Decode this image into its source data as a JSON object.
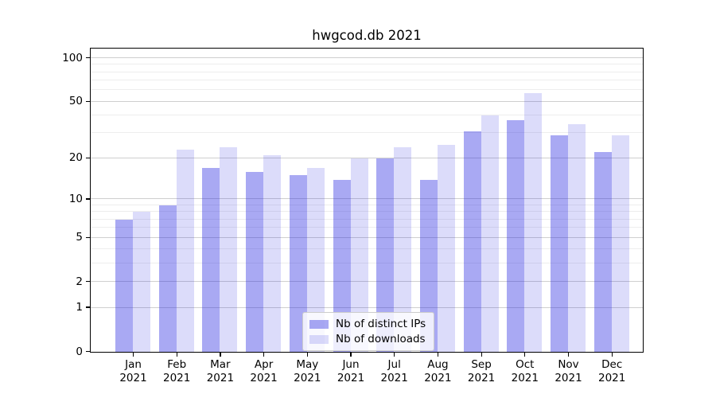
{
  "chart_data": {
    "type": "bar",
    "title": "hwgcod.db 2021",
    "categories": [
      "Jan",
      "Feb",
      "Mar",
      "Apr",
      "May",
      "Jun",
      "Jul",
      "Aug",
      "Sep",
      "Oct",
      "Nov",
      "Dec"
    ],
    "category_year": "2021",
    "series": [
      {
        "name": "Nb of distinct IPs",
        "key": "distinct-ips",
        "color": "#2828e166",
        "values": [
          7,
          9,
          17,
          16,
          15,
          14,
          20,
          14,
          31,
          37,
          29,
          22
        ]
      },
      {
        "name": "Nb of downloads",
        "key": "downloads",
        "color": "#2828e129",
        "values": [
          8,
          23,
          24,
          21,
          17,
          20,
          24,
          25,
          40,
          57,
          35,
          29
        ]
      }
    ],
    "yscale": "log1p",
    "ylim": [
      0,
      115
    ],
    "y_major_ticks": [
      0,
      1,
      2,
      5,
      10,
      20,
      50,
      100
    ],
    "y_minor_ticks": [
      3,
      4,
      6,
      7,
      8,
      9,
      30,
      40,
      60,
      70,
      80,
      90
    ],
    "grid": true,
    "legend_position": "lower-center",
    "axes_color": "#000000",
    "grid_major_color": "#cfcfcf",
    "grid_minor_color": "#ededed"
  }
}
